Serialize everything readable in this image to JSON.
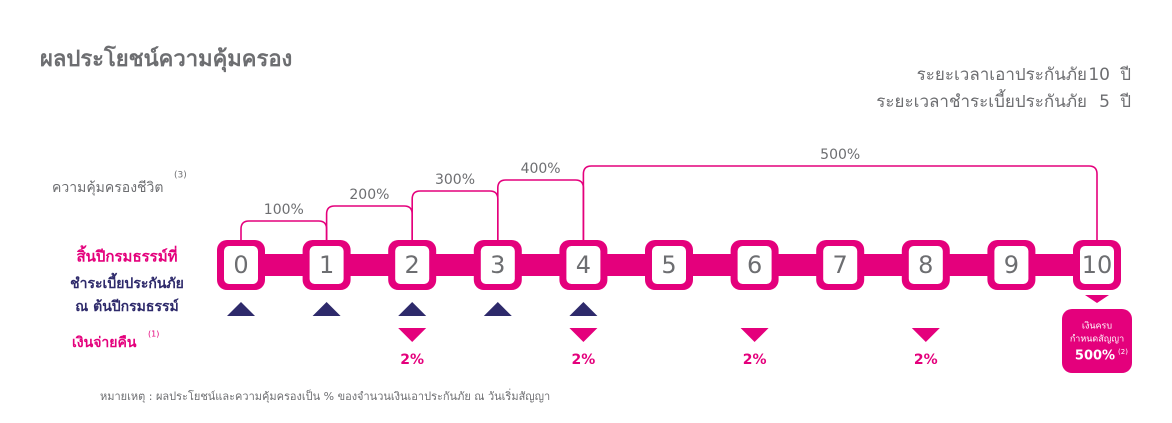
{
  "title": "ผลประโยชน์ความคุ้มครอง",
  "terms": [
    {
      "label": "ระยะเวลาเอาประกันภัย",
      "value": "10",
      "unit": "ปี"
    },
    {
      "label": "ระยะเวลาชำระเบี้ยประกันภัย",
      "value": "5",
      "unit": "ปี"
    }
  ],
  "life_coverage": {
    "label": "ความคุ้มครองชีวิต",
    "note": "(3)",
    "levels": [
      "100%",
      "200%",
      "300%",
      "400%",
      "500%"
    ]
  },
  "year_row_label": [
    "สิ้นปีกรมธรรม์ที่",
    "ชำระเบี้ยประกันภัย",
    "ณ ต้นปีกรมธรรม์"
  ],
  "years": [
    "0",
    "1",
    "2",
    "3",
    "4",
    "5",
    "6",
    "7",
    "8",
    "9",
    "10"
  ],
  "cash_back": {
    "label": "เงินจ่ายคืน",
    "note": "(1)",
    "amounts": [
      "2%",
      "2%",
      "2%",
      "2%"
    ]
  },
  "maturity": {
    "line1": "เงินครบ",
    "line2": "กำหนดสัญญา",
    "value": "500%",
    "note": "(2)"
  },
  "footnote": "หมายเหตุ :  ผลประโยชน์และความคุ้มครองเป็น % ของจำนวนเงินเอาประกันภัย ณ วันเริ่มสัญญา"
}
